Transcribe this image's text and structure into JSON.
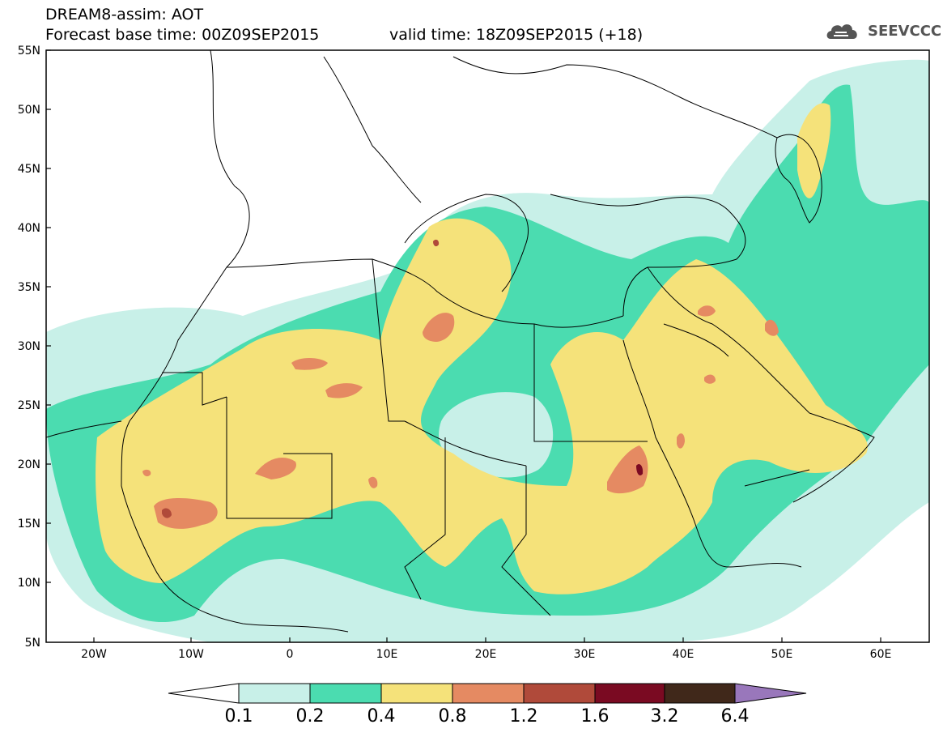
{
  "title_line1": "DREAM8-assim: AOT",
  "title_line2": "Forecast base time: 00Z09SEP2015",
  "valid_time": "valid time: 18Z09SEP2015 (+18)",
  "logo_text": "SEEVCCC",
  "lat_labels": [
    "55N",
    "50N",
    "45N",
    "40N",
    "35N",
    "30N",
    "25N",
    "20N",
    "15N",
    "10N",
    "5N"
  ],
  "lon_labels": [
    "20W",
    "10W",
    "0",
    "10E",
    "20E",
    "30E",
    "40E",
    "50E",
    "60E"
  ],
  "legend": {
    "labels": [
      "0.1",
      "0.2",
      "0.4",
      "0.8",
      "1.2",
      "1.6",
      "3.2",
      "6.4"
    ],
    "colors": [
      "#ffffff",
      "#c8f0e8",
      "#4bdcb0",
      "#f5e27a",
      "#e58a62",
      "#b04a3a",
      "#7a0a22",
      "#40281a",
      "#9977bb"
    ]
  },
  "colors": {
    "aot_0_1": "#c8f0e8",
    "aot_0_2": "#4bdcb0",
    "aot_0_4": "#f5e27a",
    "aot_0_8": "#e58a62",
    "aot_1_2": "#b04a3a",
    "aot_1_6": "#7a0a22"
  }
}
